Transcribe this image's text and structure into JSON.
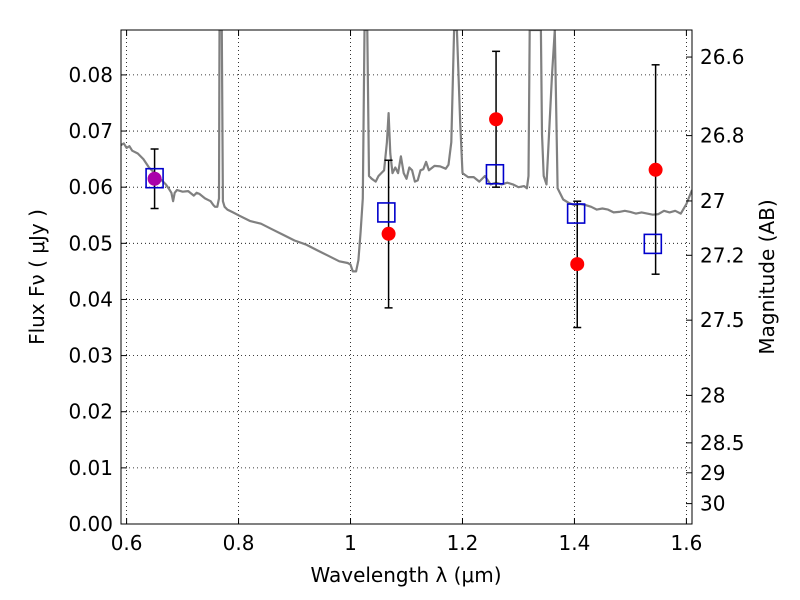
{
  "chart_data": {
    "type": "scatter",
    "xlabel": "Wavelength  λ (μm)",
    "ylabel": "Flux  Fν  ( μJy )",
    "ylabel_right": "Magnitude (AB)",
    "xlim": [
      0.59,
      1.61
    ],
    "ylim": [
      0.0,
      0.088
    ],
    "grid": true,
    "x_ticks": [
      0.6,
      0.8,
      1.0,
      1.2,
      1.4,
      1.6
    ],
    "x_tick_labels": [
      "0.6",
      "0.8",
      "1",
      "1.2",
      "1.4",
      "1.6"
    ],
    "y_ticks": [
      0.0,
      0.01,
      0.02,
      0.03,
      0.04,
      0.05,
      0.06,
      0.07,
      0.08
    ],
    "y_tick_labels": [
      "0.00",
      "0.01",
      "0.02",
      "0.03",
      "0.04",
      "0.05",
      "0.06",
      "0.07",
      "0.08"
    ],
    "mag_ticks": [
      26.6,
      26.8,
      27,
      27.2,
      27.5,
      28,
      28.5,
      29,
      30
    ],
    "mag_tick_labels": [
      "26.6",
      "26.8",
      "27",
      "27.2",
      "27.5",
      "28",
      "28.5",
      "29",
      "30"
    ],
    "model_spectrum": {
      "color": "#808080",
      "points": [
        [
          0.59,
          0.0675
        ],
        [
          0.595,
          0.0678
        ],
        [
          0.6,
          0.067
        ],
        [
          0.605,
          0.0673
        ],
        [
          0.61,
          0.0665
        ],
        [
          0.62,
          0.066
        ],
        [
          0.63,
          0.065
        ],
        [
          0.64,
          0.0635
        ],
        [
          0.65,
          0.0625
        ],
        [
          0.66,
          0.0615
        ],
        [
          0.67,
          0.0605
        ],
        [
          0.675,
          0.0598
        ],
        [
          0.68,
          0.059
        ],
        [
          0.683,
          0.0575
        ],
        [
          0.686,
          0.059
        ],
        [
          0.69,
          0.0595
        ],
        [
          0.7,
          0.0592
        ],
        [
          0.71,
          0.0593
        ],
        [
          0.72,
          0.0585
        ],
        [
          0.725,
          0.059
        ],
        [
          0.73,
          0.0588
        ],
        [
          0.74,
          0.058
        ],
        [
          0.75,
          0.0575
        ],
        [
          0.755,
          0.0568
        ],
        [
          0.758,
          0.0565
        ],
        [
          0.762,
          0.0565
        ],
        [
          0.765,
          0.058
        ],
        [
          0.766,
          0.088
        ],
        [
          0.77,
          0.088
        ],
        [
          0.772,
          0.0575
        ],
        [
          0.775,
          0.0565
        ],
        [
          0.78,
          0.056
        ],
        [
          0.79,
          0.0555
        ],
        [
          0.8,
          0.055
        ],
        [
          0.82,
          0.054
        ],
        [
          0.84,
          0.0535
        ],
        [
          0.86,
          0.0525
        ],
        [
          0.88,
          0.0515
        ],
        [
          0.9,
          0.0505
        ],
        [
          0.92,
          0.0498
        ],
        [
          0.94,
          0.0488
        ],
        [
          0.96,
          0.0478
        ],
        [
          0.98,
          0.0468
        ],
        [
          0.995,
          0.0465
        ],
        [
          1.0,
          0.0462
        ],
        [
          1.004,
          0.045
        ],
        [
          1.01,
          0.045
        ],
        [
          1.014,
          0.047
        ],
        [
          1.018,
          0.052
        ],
        [
          1.022,
          0.058
        ],
        [
          1.025,
          0.088
        ],
        [
          1.03,
          0.088
        ],
        [
          1.033,
          0.062
        ],
        [
          1.038,
          0.0615
        ],
        [
          1.045,
          0.061
        ],
        [
          1.05,
          0.062
        ],
        [
          1.055,
          0.0625
        ],
        [
          1.06,
          0.063
        ],
        [
          1.065,
          0.068
        ],
        [
          1.068,
          0.0732
        ],
        [
          1.071,
          0.066
        ],
        [
          1.075,
          0.0625
        ],
        [
          1.08,
          0.0635
        ],
        [
          1.085,
          0.0625
        ],
        [
          1.09,
          0.0655
        ],
        [
          1.095,
          0.0625
        ],
        [
          1.1,
          0.0615
        ],
        [
          1.105,
          0.0635
        ],
        [
          1.11,
          0.063
        ],
        [
          1.115,
          0.061
        ],
        [
          1.12,
          0.0612
        ],
        [
          1.125,
          0.063
        ],
        [
          1.13,
          0.0632
        ],
        [
          1.135,
          0.0645
        ],
        [
          1.14,
          0.063
        ],
        [
          1.15,
          0.0638
        ],
        [
          1.16,
          0.0637
        ],
        [
          1.17,
          0.0633
        ],
        [
          1.175,
          0.064
        ],
        [
          1.18,
          0.068
        ],
        [
          1.185,
          0.088
        ],
        [
          1.19,
          0.088
        ],
        [
          1.196,
          0.0715
        ],
        [
          1.2,
          0.0625
        ],
        [
          1.21,
          0.0618
        ],
        [
          1.22,
          0.0618
        ],
        [
          1.23,
          0.061
        ],
        [
          1.24,
          0.062
        ],
        [
          1.25,
          0.0605
        ],
        [
          1.26,
          0.0608
        ],
        [
          1.27,
          0.0605
        ],
        [
          1.28,
          0.0608
        ],
        [
          1.29,
          0.0605
        ],
        [
          1.3,
          0.06
        ],
        [
          1.31,
          0.0602
        ],
        [
          1.315,
          0.0598
        ],
        [
          1.318,
          0.062
        ],
        [
          1.32,
          0.088
        ],
        [
          1.34,
          0.088
        ],
        [
          1.342,
          0.0695
        ],
        [
          1.345,
          0.062
        ],
        [
          1.35,
          0.0605
        ],
        [
          1.36,
          0.08
        ],
        [
          1.365,
          0.088
        ],
        [
          1.37,
          0.0598
        ],
        [
          1.38,
          0.0578
        ],
        [
          1.39,
          0.0572
        ],
        [
          1.4,
          0.0568
        ],
        [
          1.41,
          0.057
        ],
        [
          1.42,
          0.0568
        ],
        [
          1.43,
          0.0565
        ],
        [
          1.44,
          0.056
        ],
        [
          1.45,
          0.0562
        ],
        [
          1.46,
          0.056
        ],
        [
          1.47,
          0.0555
        ],
        [
          1.48,
          0.0556
        ],
        [
          1.49,
          0.0558
        ],
        [
          1.5,
          0.0556
        ],
        [
          1.51,
          0.0553
        ],
        [
          1.52,
          0.0555
        ],
        [
          1.53,
          0.0553
        ],
        [
          1.54,
          0.0551
        ],
        [
          1.55,
          0.0552
        ],
        [
          1.56,
          0.0558
        ],
        [
          1.57,
          0.0555
        ],
        [
          1.58,
          0.0558
        ],
        [
          1.59,
          0.0553
        ],
        [
          1.6,
          0.057
        ],
        [
          1.61,
          0.0595
        ]
      ]
    },
    "observed": {
      "color": "#ff0000",
      "points": [
        {
          "x": 0.65,
          "y": 0.0615,
          "y_low": 0.0562,
          "y_high": 0.0668
        },
        {
          "x": 1.068,
          "y": 0.0517,
          "y_low": 0.0385,
          "y_high": 0.0648
        },
        {
          "x": 1.26,
          "y": 0.0721,
          "y_low": 0.06,
          "y_high": 0.0842
        },
        {
          "x": 1.405,
          "y": 0.0463,
          "y_low": 0.035,
          "y_high": 0.0575
        },
        {
          "x": 1.545,
          "y": 0.0631,
          "y_low": 0.0445,
          "y_high": 0.0818
        }
      ]
    },
    "model_bands": {
      "color": "#0000cc",
      "points": [
        {
          "x": 0.65,
          "y": 0.0616
        },
        {
          "x": 1.064,
          "y": 0.0555
        },
        {
          "x": 1.258,
          "y": 0.0623
        },
        {
          "x": 1.403,
          "y": 0.0553
        },
        {
          "x": 1.54,
          "y": 0.0499
        }
      ]
    },
    "overlap_color": "#aa00aa"
  }
}
